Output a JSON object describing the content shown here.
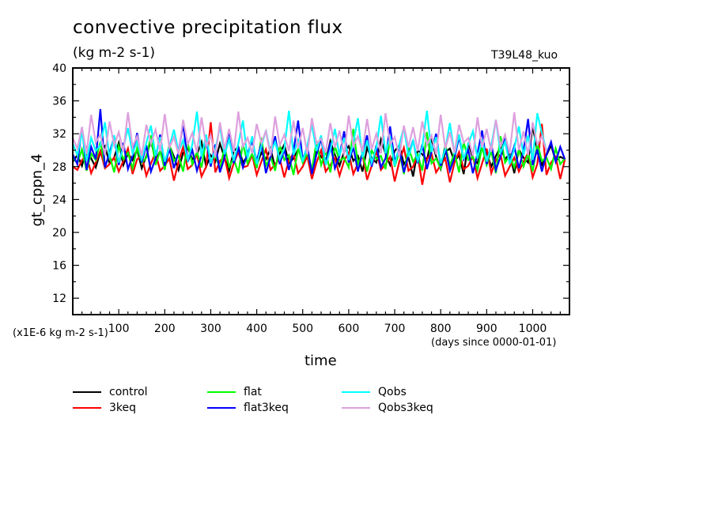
{
  "chart_data": {
    "type": "line",
    "title": "convective precipitation flux",
    "units": "(kg m-2 s-1)",
    "run_label": "T39L48_kuo",
    "ylabel": "gt_cppn_4",
    "xlabel": "time",
    "x_units": "(days since 0000-01-01)",
    "y_scale_note": "(x1E-6 kg m-2 s-1)",
    "xlim": [
      0,
      1080
    ],
    "ylim": [
      10,
      40
    ],
    "x_ticks": [
      100,
      200,
      300,
      400,
      500,
      600,
      700,
      800,
      900,
      1000
    ],
    "x_tick_labels": [
      "100",
      "200",
      "300",
      "400",
      "500",
      "600",
      "700",
      "800",
      "900",
      "1000"
    ],
    "y_ticks": [
      12,
      16,
      20,
      24,
      28,
      32,
      36,
      40
    ],
    "y_tick_labels": [
      "12",
      "16",
      "20",
      "24",
      "28",
      "32",
      "36",
      "40"
    ],
    "grid": false,
    "legend_position": "bottom",
    "x_step_days": 10,
    "series": [
      {
        "name": "control",
        "color": "#000000",
        "values": [
          28.6,
          29.4,
          28.1,
          30.2,
          29.0,
          27.9,
          29.8,
          30.5,
          28.4,
          29.1,
          30.9,
          28.2,
          29.6,
          28.8,
          30.1,
          27.8,
          29.3,
          31.2,
          28.7,
          29.9,
          28.3,
          30.6,
          29.2,
          27.6,
          29.7,
          30.3,
          28.9,
          29.5,
          31.0,
          28.0,
          29.4,
          28.6,
          30.8,
          29.1,
          27.5,
          29.9,
          30.4,
          28.5,
          29.3,
          31.5,
          28.2,
          29.7,
          28.9,
          30.2,
          27.9,
          29.6,
          30.7,
          28.4,
          29.0,
          30.1,
          28.8,
          29.5,
          27.3,
          30.0,
          29.2,
          28.6,
          31.1,
          29.4,
          28.1,
          29.8,
          30.5,
          28.7,
          29.3,
          27.4,
          30.3,
          29.0,
          28.5,
          31.3,
          29.6,
          28.2,
          29.9,
          30.6,
          28.3,
          29.1,
          26.8,
          30.0,
          29.5,
          28.8,
          31.4,
          29.2,
          27.7,
          29.8,
          30.2,
          28.6,
          29.4,
          27.1,
          30.9,
          29.0,
          28.4,
          30.7,
          29.7,
          28.0,
          29.3,
          30.4,
          28.9,
          29.6,
          27.2,
          30.1,
          29.1,
          28.5,
          33.0,
          29.8,
          28.2,
          29.4,
          30.6,
          28.7,
          29.2,
          28.9
        ]
      },
      {
        "name": "3keq",
        "color": "#ff0000",
        "values": [
          28.0,
          27.6,
          28.8,
          29.4,
          27.2,
          28.5,
          29.9,
          27.8,
          28.3,
          29.1,
          27.4,
          28.7,
          30.2,
          27.1,
          28.9,
          29.3,
          26.9,
          28.4,
          29.7,
          27.5,
          28.1,
          29.0,
          26.3,
          28.6,
          30.4,
          27.7,
          28.2,
          29.5,
          26.8,
          28.0,
          33.4,
          27.3,
          28.7,
          29.2,
          26.6,
          28.4,
          29.8,
          27.9,
          28.1,
          29.4,
          27.0,
          28.6,
          30.1,
          27.6,
          28.3,
          29.0,
          26.7,
          28.8,
          29.6,
          27.2,
          28.0,
          29.3,
          26.5,
          28.5,
          30.0,
          27.4,
          28.2,
          29.1,
          26.9,
          28.7,
          29.7,
          27.1,
          28.4,
          29.5,
          26.4,
          28.1,
          29.9,
          27.6,
          28.3,
          29.2,
          26.2,
          28.6,
          30.3,
          27.5,
          28.0,
          29.4,
          25.8,
          28.9,
          29.6,
          27.3,
          28.2,
          29.0,
          26.1,
          28.5,
          29.8,
          27.7,
          28.1,
          29.3,
          26.6,
          28.4,
          30.2,
          27.2,
          28.8,
          29.5,
          26.9,
          28.0,
          29.1,
          27.4,
          28.6,
          29.7,
          26.7,
          28.3,
          33.2,
          27.0,
          28.5,
          29.2,
          26.5,
          28.9
        ]
      },
      {
        "name": "flat",
        "color": "#00ff00",
        "values": [
          29.2,
          28.4,
          30.1,
          27.5,
          29.6,
          28.8,
          31.0,
          28.1,
          29.4,
          27.3,
          30.5,
          28.9,
          29.7,
          27.8,
          30.3,
          28.5,
          29.1,
          31.8,
          28.2,
          29.9,
          27.6,
          30.7,
          28.7,
          29.3,
          27.4,
          30.9,
          28.3,
          29.8,
          27.9,
          31.2,
          28.6,
          29.5,
          27.7,
          30.4,
          28.0,
          29.0,
          27.2,
          30.8,
          28.4,
          29.6,
          27.8,
          31.5,
          28.1,
          29.2,
          27.5,
          30.6,
          28.8,
          29.4,
          27.0,
          30.2,
          28.5,
          29.7,
          27.6,
          31.1,
          28.2,
          29.9,
          27.3,
          30.5,
          28.7,
          29.1,
          27.9,
          32.6,
          28.3,
          29.6,
          27.4,
          30.0,
          28.9,
          29.3,
          27.7,
          31.4,
          28.0,
          29.8,
          27.1,
          30.3,
          28.6,
          29.5,
          27.5,
          32.2,
          28.4,
          29.0,
          27.8,
          30.7,
          28.1,
          29.7,
          27.3,
          31.0,
          28.8,
          29.2,
          27.6,
          30.4,
          28.2,
          29.9,
          27.2,
          31.7,
          28.5,
          29.4,
          27.9,
          30.1,
          28.0,
          29.6,
          27.4,
          30.8,
          28.7,
          29.1,
          27.7,
          30.2,
          28.3,
          29.0
        ]
      },
      {
        "name": "flat3keq",
        "color": "#0000ff",
        "values": [
          29.5,
          28.3,
          32.8,
          27.6,
          30.4,
          28.9,
          35.0,
          27.9,
          29.7,
          31.6,
          28.2,
          30.9,
          27.7,
          29.3,
          32.1,
          28.5,
          30.6,
          27.4,
          29.0,
          31.9,
          28.1,
          30.2,
          27.8,
          29.8,
          33.2,
          28.6,
          30.0,
          27.5,
          29.4,
          31.3,
          28.0,
          30.7,
          27.3,
          29.1,
          32.5,
          28.4,
          30.3,
          27.9,
          29.6,
          31.1,
          28.7,
          30.8,
          27.2,
          29.2,
          31.7,
          28.3,
          30.1,
          27.6,
          29.9,
          33.6,
          28.8,
          30.5,
          27.1,
          29.5,
          31.4,
          28.2,
          30.9,
          27.8,
          29.3,
          32.3,
          28.5,
          30.4,
          27.4,
          29.7,
          31.8,
          28.0,
          30.6,
          27.9,
          29.0,
          32.9,
          28.6,
          30.2,
          27.3,
          29.4,
          31.2,
          28.4,
          30.7,
          27.7,
          29.8,
          32.0,
          28.1,
          30.3,
          27.5,
          29.1,
          31.6,
          28.9,
          30.0,
          27.2,
          29.6,
          32.4,
          28.3,
          30.8,
          27.6,
          29.2,
          31.5,
          28.7,
          30.5,
          27.8,
          29.9,
          33.8,
          28.2,
          30.1,
          27.4,
          29.5,
          31.0,
          28.6,
          30.4,
          28.9
        ]
      },
      {
        "name": "Qobs",
        "color": "#00ffff",
        "values": [
          30.8,
          29.4,
          32.2,
          28.7,
          31.5,
          29.9,
          30.6,
          33.4,
          29.1,
          31.8,
          28.5,
          30.3,
          32.7,
          29.6,
          31.1,
          28.9,
          30.9,
          33.0,
          29.3,
          31.6,
          28.6,
          30.4,
          32.5,
          29.8,
          31.2,
          28.8,
          30.7,
          34.7,
          29.2,
          31.9,
          28.4,
          30.1,
          32.9,
          29.5,
          31.3,
          28.7,
          30.8,
          33.6,
          29.0,
          31.7,
          28.3,
          30.5,
          32.4,
          29.7,
          31.0,
          28.9,
          30.2,
          34.8,
          29.4,
          31.4,
          28.6,
          30.6,
          33.1,
          29.9,
          31.8,
          28.2,
          30.0,
          32.6,
          29.3,
          31.5,
          28.8,
          30.9,
          33.9,
          29.1,
          31.2,
          28.5,
          30.3,
          34.2,
          29.6,
          31.7,
          28.1,
          30.7,
          32.8,
          29.2,
          31.1,
          28.7,
          30.4,
          34.8,
          29.8,
          31.6,
          28.4,
          30.1,
          33.3,
          29.5,
          31.9,
          28.9,
          30.8,
          32.3,
          29.0,
          31.3,
          28.6,
          30.5,
          33.7,
          29.7,
          31.0,
          28.3,
          30.2,
          32.9,
          29.4,
          31.8,
          28.8,
          34.5,
          32.1,
          29.9
        ]
      },
      {
        "name": "Qobs3keq",
        "color": "#dda0dd",
        "values": [
          31.5,
          30.2,
          32.8,
          29.6,
          34.3,
          30.9,
          31.9,
          29.4,
          33.5,
          30.6,
          32.2,
          29.8,
          34.6,
          30.4,
          31.7,
          29.3,
          33.1,
          30.8,
          32.5,
          29.9,
          34.4,
          30.3,
          31.6,
          29.5,
          33.7,
          30.7,
          32.1,
          29.7,
          34.0,
          30.5,
          31.8,
          29.2,
          33.4,
          30.1,
          32.6,
          29.8,
          34.7,
          30.4,
          31.5,
          29.6,
          33.2,
          30.9,
          32.3,
          29.3,
          34.1,
          30.6,
          31.9,
          29.9,
          33.6,
          30.2,
          32.7,
          29.5,
          33.9,
          30.8,
          31.4,
          29.7,
          33.3,
          30.3,
          32.4,
          29.4,
          34.2,
          30.5,
          31.7,
          29.8,
          33.8,
          30.1,
          32.0,
          29.6,
          34.5,
          30.7,
          31.6,
          29.2,
          33.0,
          30.4,
          32.8,
          29.9,
          33.5,
          30.6,
          31.8,
          29.5,
          34.3,
          30.2,
          32.2,
          29.7,
          33.1,
          30.9,
          31.5,
          29.3,
          34.0,
          30.3,
          32.6,
          29.8,
          33.7,
          30.5,
          31.9,
          29.6,
          34.6,
          30.0,
          32.3,
          29.4,
          33.4,
          30.7,
          31.7,
          29.9
        ]
      }
    ]
  },
  "legend": {
    "items": [
      {
        "label": "control",
        "color": "#000000"
      },
      {
        "label": "3keq",
        "color": "#ff0000"
      },
      {
        "label": "flat",
        "color": "#00ff00"
      },
      {
        "label": "flat3keq",
        "color": "#0000ff"
      },
      {
        "label": "Qobs",
        "color": "#00ffff"
      },
      {
        "label": "Qobs3keq",
        "color": "#dda0dd"
      }
    ]
  }
}
